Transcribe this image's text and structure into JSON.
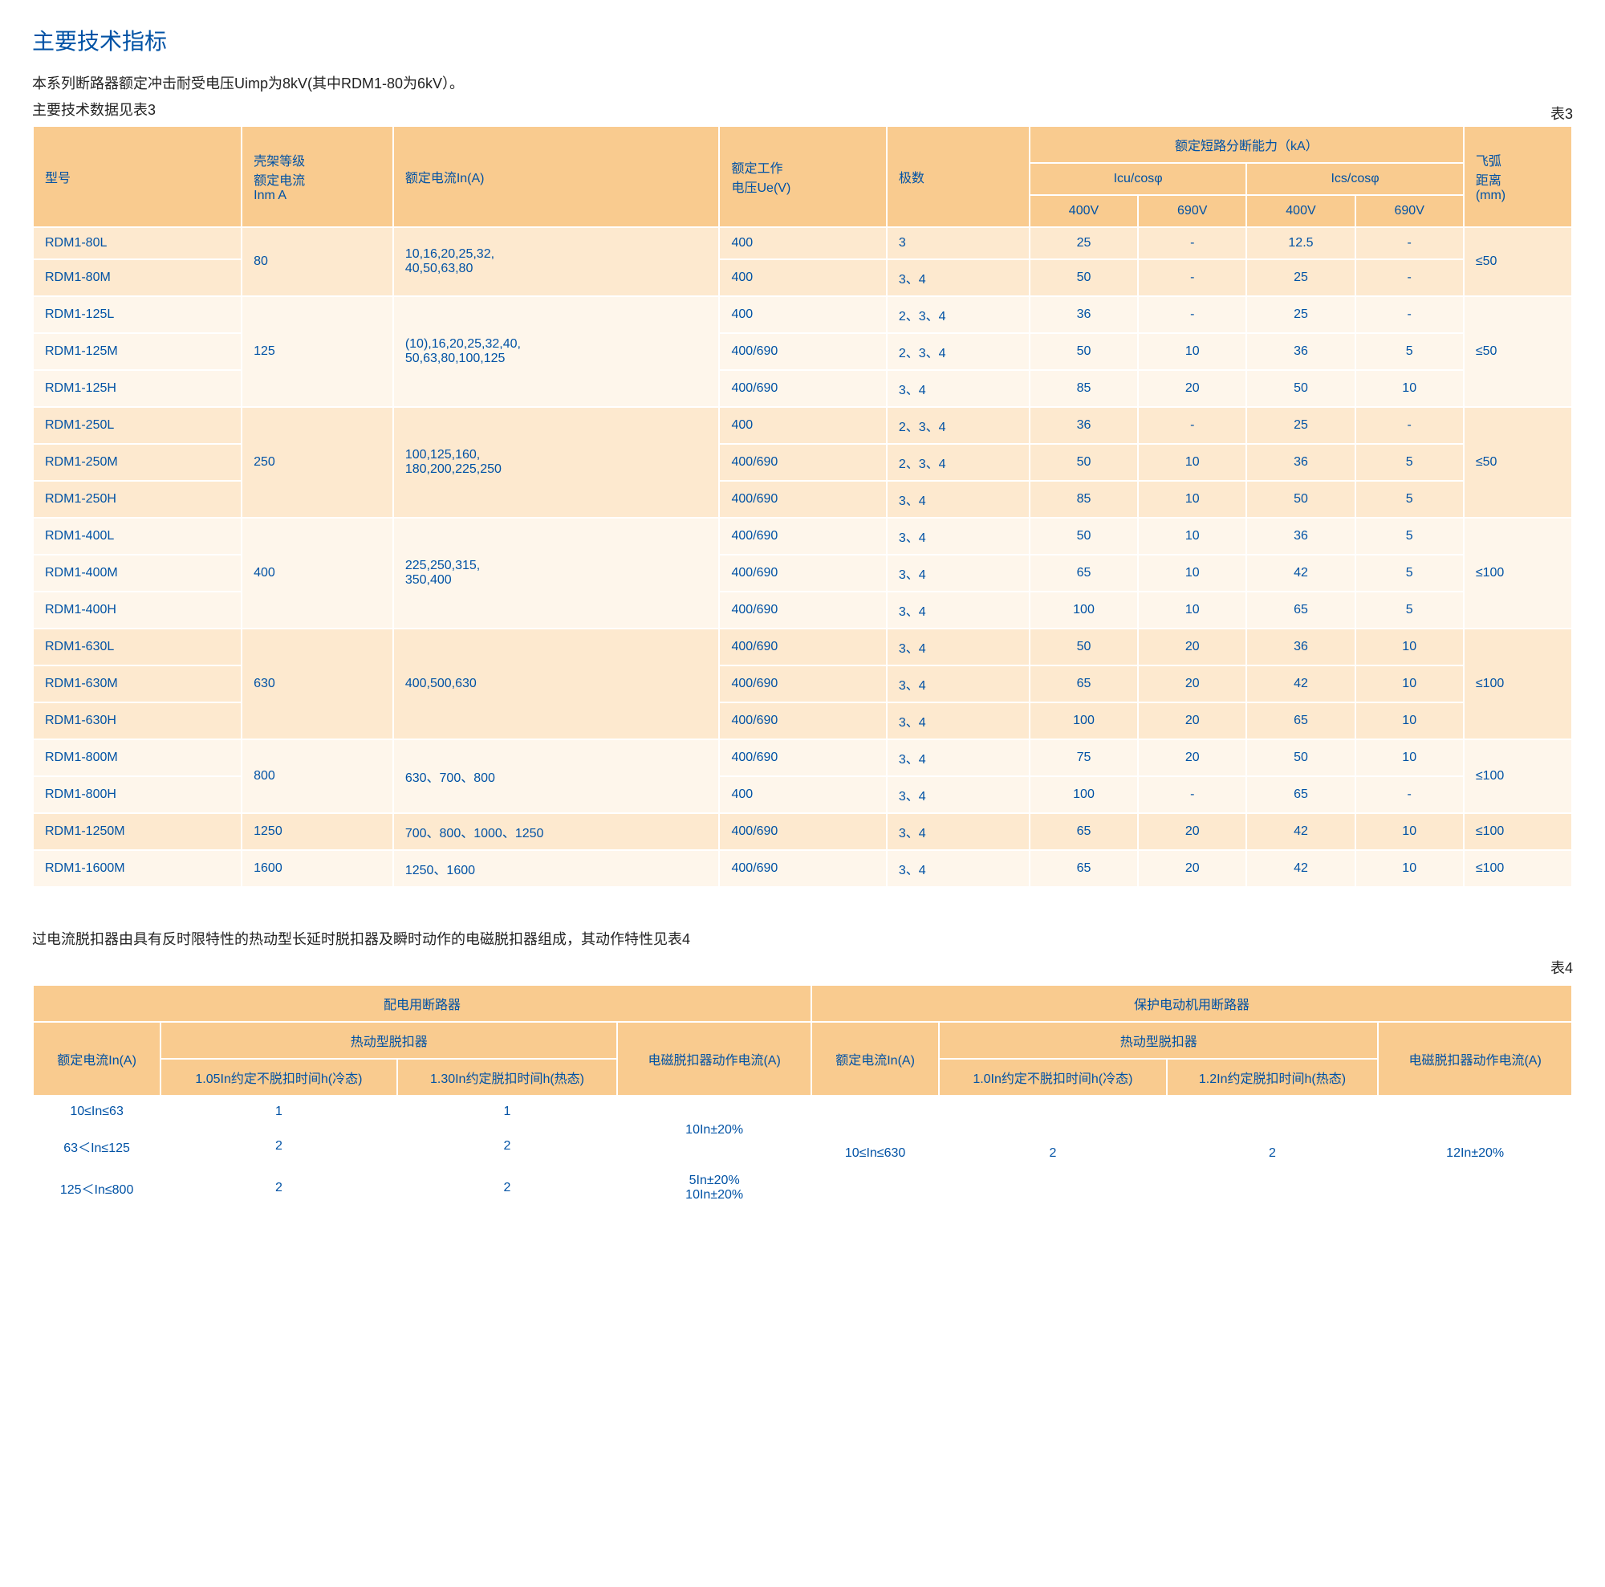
{
  "title": "主要技术指标",
  "intro_line1": "本系列断路器额定冲击耐受电压Uimp为8kV(其中RDM1-80为6kV）。",
  "intro_line2": "主要技术数据见表3",
  "t3_label": "表3",
  "t3": {
    "h_model": "型号",
    "h_frame": "壳架等级\n额定电流\nInm  A",
    "h_rated_current": "额定电流In(A)",
    "h_voltage": "额定工作\n电压Ue(V)",
    "h_poles": "极数",
    "h_breaking": "额定短路分断能力（kA）",
    "h_icu": "Icu/cosφ",
    "h_ics": "Ics/cosφ",
    "h_400v": "400V",
    "h_690v": "690V",
    "h_arc": "飞弧\n距离\n(mm)",
    "rows": [
      {
        "m": "RDM1-80L",
        "f": "80",
        "c": "10,16,20,25,32,\n40,50,63,80",
        "v": "400",
        "p": "3",
        "icu4": "25",
        "icu6": "-",
        "ics4": "12.5",
        "ics6": "-",
        "arc": "≤50"
      },
      {
        "m": "RDM1-80M",
        "v": "400",
        "p": "3、4",
        "icu4": "50",
        "icu6": "-",
        "ics4": "25",
        "ics6": "-"
      },
      {
        "m": "RDM1-125L",
        "f": "125",
        "c": "(10),16,20,25,32,40,\n50,63,80,100,125",
        "v": "400",
        "p": "2、3、4",
        "icu4": "36",
        "icu6": "-",
        "ics4": "25",
        "ics6": "-",
        "arc": "≤50"
      },
      {
        "m": "RDM1-125M",
        "v": "400/690",
        "p": "2、3、4",
        "icu4": "50",
        "icu6": "10",
        "ics4": "36",
        "ics6": "5"
      },
      {
        "m": "RDM1-125H",
        "v": "400/690",
        "p": "3、4",
        "icu4": "85",
        "icu6": "20",
        "ics4": "50",
        "ics6": "10"
      },
      {
        "m": "RDM1-250L",
        "f": "250",
        "c": "100,125,160,\n180,200,225,250",
        "v": "400",
        "p": "2、3、4",
        "icu4": "36",
        "icu6": "-",
        "ics4": "25",
        "ics6": "-",
        "arc": "≤50"
      },
      {
        "m": "RDM1-250M",
        "v": "400/690",
        "p": "2、3、4",
        "icu4": "50",
        "icu6": "10",
        "ics4": "36",
        "ics6": "5"
      },
      {
        "m": "RDM1-250H",
        "v": "400/690",
        "p": "3、4",
        "icu4": "85",
        "icu6": "10",
        "ics4": "50",
        "ics6": "5"
      },
      {
        "m": "RDM1-400L",
        "f": "400",
        "c": "225,250,315,\n350,400",
        "v": "400/690",
        "p": "3、4",
        "icu4": "50",
        "icu6": "10",
        "ics4": "36",
        "ics6": "5",
        "arc": "≤100"
      },
      {
        "m": "RDM1-400M",
        "v": "400/690",
        "p": "3、4",
        "icu4": "65",
        "icu6": "10",
        "ics4": "42",
        "ics6": "5"
      },
      {
        "m": "RDM1-400H",
        "v": "400/690",
        "p": "3、4",
        "icu4": "100",
        "icu6": "10",
        "ics4": "65",
        "ics6": "5"
      },
      {
        "m": "RDM1-630L",
        "f": "630",
        "c": "400,500,630",
        "v": "400/690",
        "p": "3、4",
        "icu4": "50",
        "icu6": "20",
        "ics4": "36",
        "ics6": "10",
        "arc": "≤100"
      },
      {
        "m": "RDM1-630M",
        "v": "400/690",
        "p": "3、4",
        "icu4": "65",
        "icu6": "20",
        "ics4": "42",
        "ics6": "10"
      },
      {
        "m": "RDM1-630H",
        "v": "400/690",
        "p": "3、4",
        "icu4": "100",
        "icu6": "20",
        "ics4": "65",
        "ics6": "10"
      },
      {
        "m": "RDM1-800M",
        "f": "800",
        "c": "630、700、800",
        "v": "400/690",
        "p": "3、4",
        "icu4": "75",
        "icu6": "20",
        "ics4": "50",
        "ics6": "10",
        "arc": "≤100"
      },
      {
        "m": "RDM1-800H",
        "v": "400",
        "p": "3、4",
        "icu4": "100",
        "icu6": "-",
        "ics4": "65",
        "ics6": "-"
      },
      {
        "m": "RDM1-1250M",
        "f": "1250",
        "c": "700、800、1000、1250",
        "v": "400/690",
        "p": "3、4",
        "icu4": "65",
        "icu6": "20",
        "ics4": "42",
        "ics6": "10",
        "arc": "≤100"
      },
      {
        "m": "RDM1-1600M",
        "f": "1600",
        "c": "1250、1600",
        "v": "400/690",
        "p": "3、4",
        "icu4": "65",
        "icu6": "20",
        "ics4": "42",
        "ics6": "10",
        "arc": "≤100"
      }
    ]
  },
  "intro2": "过电流脱扣器由具有反时限特性的热动型长延时脱扣器及瞬时动作的电磁脱扣器组成，其动作特性见表4",
  "t4_label": "表4",
  "t4": {
    "h_left": "配电用断路器",
    "h_right": "保护电动机用断路器",
    "h_thermal": "热动型脱扣器",
    "h_rated": "额定电流In(A)",
    "h_105": "1.05In约定不脱扣时间h(冷态)",
    "h_130": "1.30In约定脱扣时间h(热态)",
    "h_mag": "电磁脱扣器动作电流(A)",
    "h_10": "1.0In约定不脱扣时间h(冷态)",
    "h_12": "1.2In约定脱扣时间h(热态)",
    "r1_range": "10≤In≤63",
    "r1_a": "1",
    "r1_b": "1",
    "r2_range": "63＜In≤125",
    "r2_a": "2",
    "r2_b": "2",
    "r3_range": "125＜In≤800",
    "r3_a": "2",
    "r3_b": "2",
    "mag1": "10In±20%",
    "mag2": "5In±20%\n10In±20%",
    "right_range": "10≤In≤630",
    "right_a": "2",
    "right_b": "2",
    "right_mag": "12In±20%"
  }
}
